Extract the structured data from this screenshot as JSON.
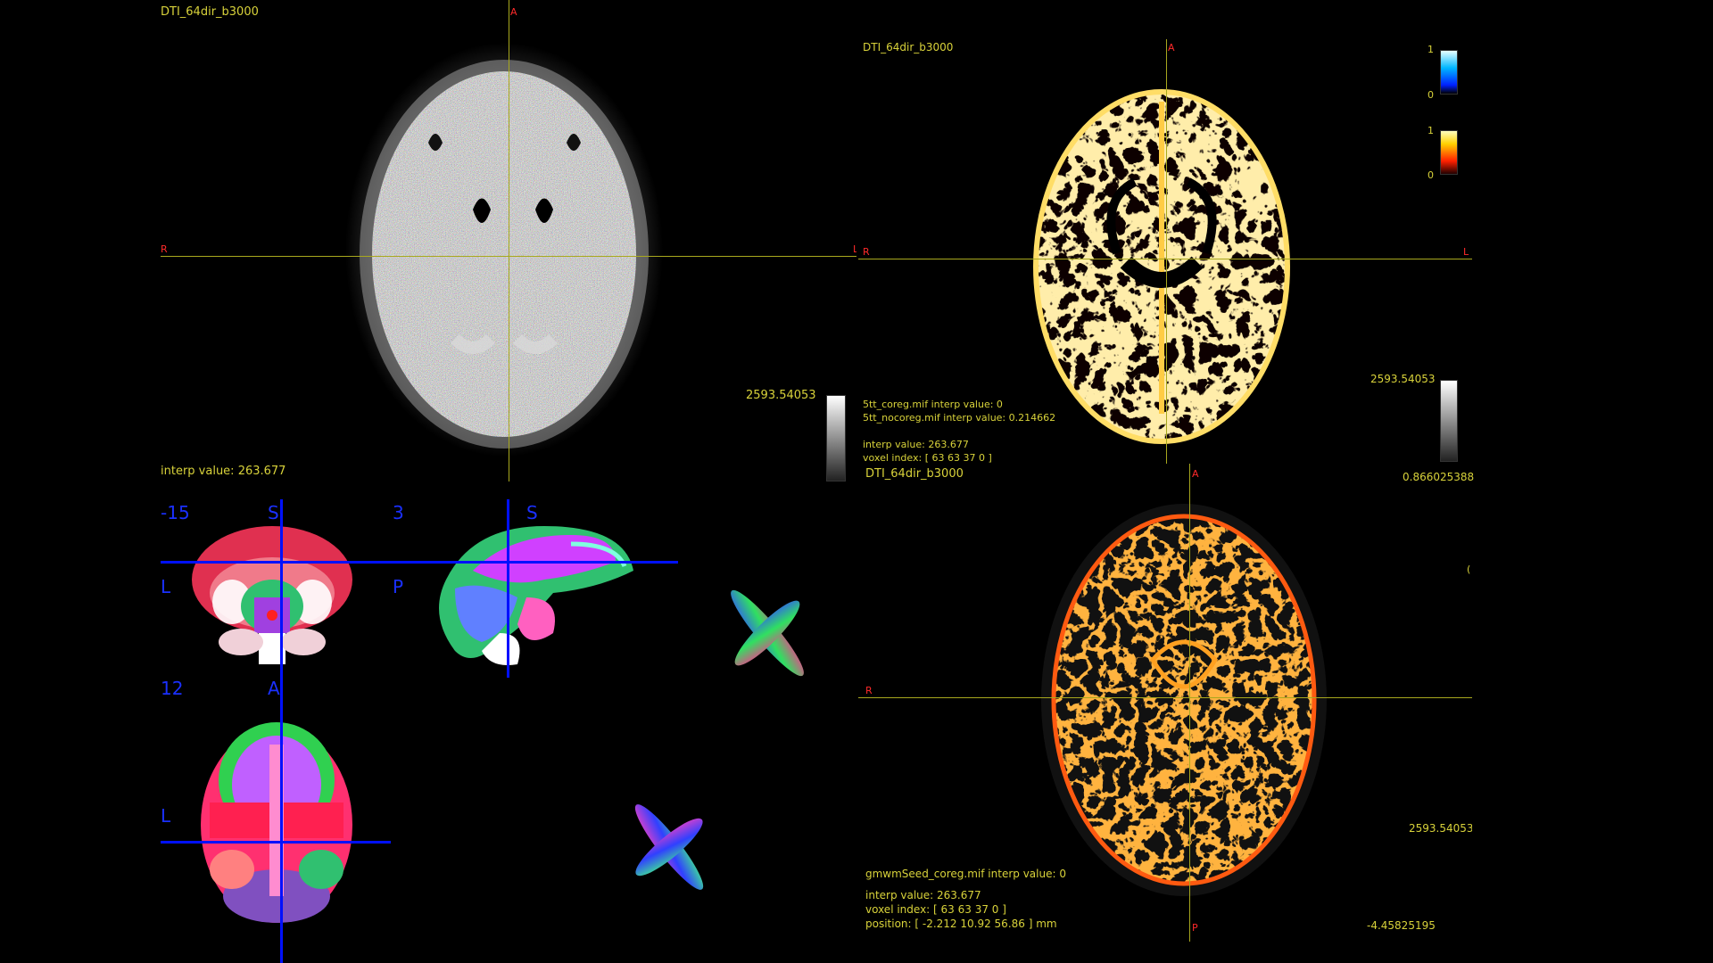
{
  "panels": {
    "top_left": {
      "title": "DTI_64dir_b3000",
      "orientation": {
        "anterior": "A",
        "right": "R",
        "left": "L"
      },
      "colorbar_max": "2593.54053",
      "interp_value": "interp value: 263.677"
    },
    "top_right": {
      "title": "DTI_64dir_b3000",
      "orientation": {
        "anterior": "A",
        "right": "R",
        "left": "L"
      },
      "overlay_bar_1": {
        "max": "1",
        "min": "0"
      },
      "overlay_bar_2": {
        "max": "1",
        "min": "0"
      },
      "colorbar_max": "2593.54053",
      "colorbar_min": "0.866025388",
      "info_lines": [
        "5tt_coreg.mif interp value: 0",
        "5tt_nocoreg.mif interp value: 0.214662",
        "",
        "interp value: 263.677",
        "voxel index: [ 63 63 37 0 ]"
      ]
    },
    "bottom_left": {
      "coronal": {
        "slice": "-15",
        "top": "S",
        "side": "L"
      },
      "sagittal": {
        "slice": "3",
        "top": "S",
        "side": "P"
      },
      "axial": {
        "slice": "12",
        "top": "A",
        "side": "L"
      }
    },
    "bottom_right": {
      "title": "DTI_64dir_b3000",
      "orientation": {
        "anterior": "A",
        "right": "R",
        "posterior": "P",
        "left_partial": "("
      },
      "colorbar_max": "2593.54053",
      "colorbar_min": "-4.45825195",
      "info_lines": [
        "gmwmSeed_coreg.mif interp value: 0",
        "",
        "interp value: 263.677",
        "voxel index: [ 63 63 37 0 ]",
        "position: [ -2.212 10.92 56.86 ] mm"
      ]
    }
  },
  "colors": {
    "label_yellow": "#d8d23a",
    "orientation_red": "#ff2a2a",
    "crosshair_yellow": "#a8a81e",
    "crosshair_blue": "#0010ff",
    "background": "#000000"
  }
}
